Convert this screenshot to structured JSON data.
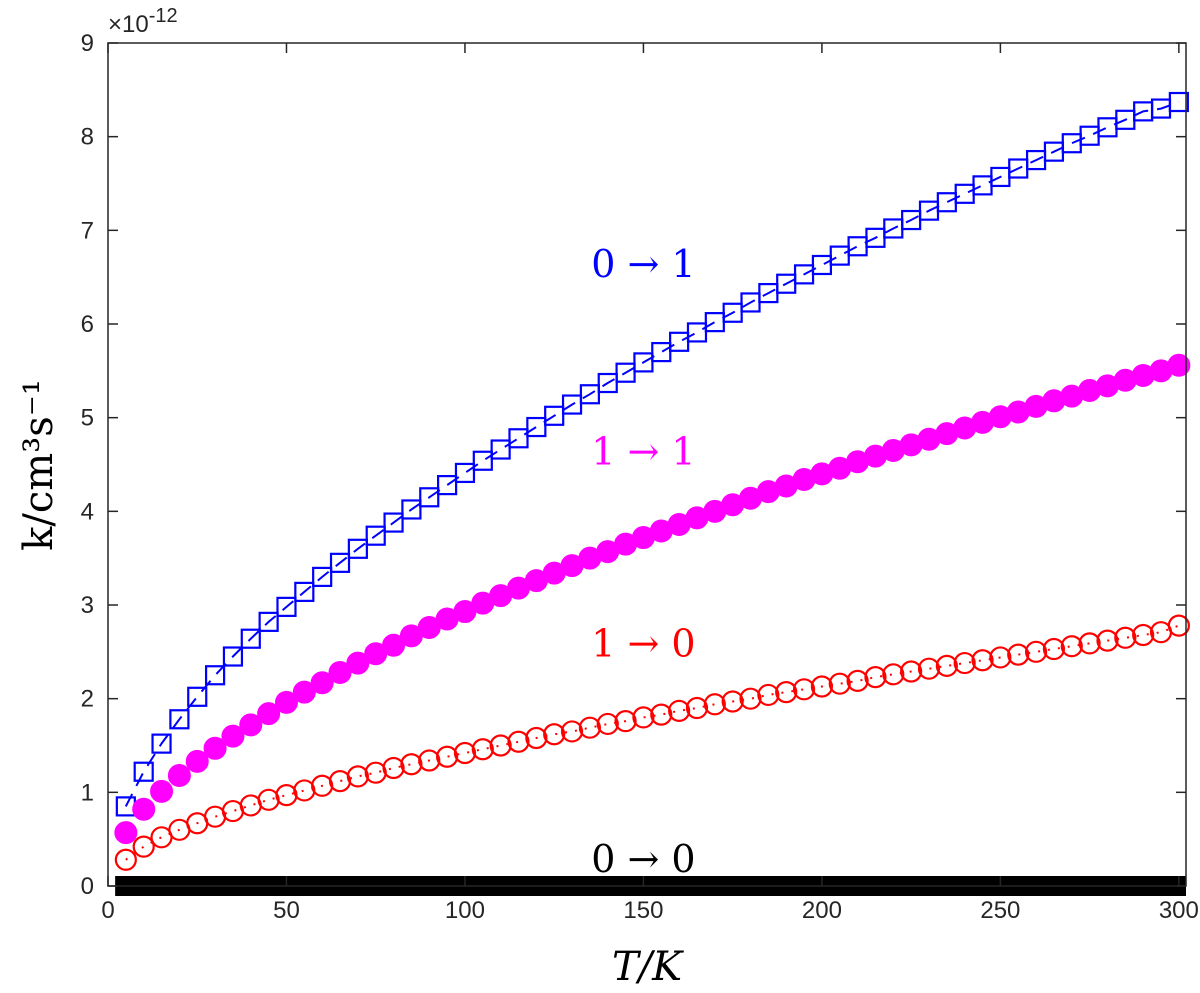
{
  "chart_data": {
    "type": "scatter",
    "xlabel": "T/K",
    "ylabel": "k/cm³s⁻¹",
    "y_exponent_label": "×10",
    "y_exponent_power": "-12",
    "xlim": [
      0,
      302
    ],
    "ylim": [
      0,
      9
    ],
    "x_ticks": [
      0,
      50,
      100,
      150,
      200,
      250,
      300
    ],
    "y_ticks": [
      0,
      1,
      2,
      3,
      4,
      5,
      6,
      7,
      8,
      9
    ],
    "grid": false,
    "series": [
      {
        "name": "0 → 1",
        "color": "#0000ff",
        "marker": "square",
        "line": "dashed",
        "label_at": [
          150,
          6.5
        ],
        "x": [
          5,
          10,
          15,
          20,
          25,
          30,
          35,
          40,
          45,
          50,
          55,
          60,
          65,
          70,
          75,
          80,
          85,
          90,
          95,
          100,
          105,
          110,
          115,
          120,
          125,
          130,
          135,
          140,
          145,
          150,
          155,
          160,
          165,
          170,
          175,
          180,
          185,
          190,
          195,
          200,
          205,
          210,
          215,
          220,
          225,
          230,
          235,
          240,
          245,
          250,
          255,
          260,
          265,
          270,
          275,
          280,
          285,
          290,
          295,
          300
        ],
        "y": [
          0.85,
          1.22,
          1.52,
          1.78,
          2.02,
          2.25,
          2.45,
          2.64,
          2.82,
          2.98,
          3.14,
          3.3,
          3.45,
          3.6,
          3.74,
          3.88,
          4.02,
          4.15,
          4.28,
          4.41,
          4.54,
          4.66,
          4.78,
          4.9,
          5.02,
          5.14,
          5.25,
          5.37,
          5.48,
          5.59,
          5.7,
          5.81,
          5.91,
          6.02,
          6.12,
          6.23,
          6.33,
          6.43,
          6.53,
          6.63,
          6.73,
          6.83,
          6.92,
          7.02,
          7.11,
          7.21,
          7.3,
          7.39,
          7.48,
          7.57,
          7.66,
          7.75,
          7.84,
          7.93,
          8.01,
          8.1,
          8.18,
          8.27,
          8.3,
          8.37
        ]
      },
      {
        "name": "1 → 1",
        "color": "#ff00ff",
        "marker": "filled-circle",
        "line": "none",
        "label_at": [
          150,
          4.5
        ],
        "x": [
          5,
          10,
          15,
          20,
          25,
          30,
          35,
          40,
          45,
          50,
          55,
          60,
          65,
          70,
          75,
          80,
          85,
          90,
          95,
          100,
          105,
          110,
          115,
          120,
          125,
          130,
          135,
          140,
          145,
          150,
          155,
          160,
          165,
          170,
          175,
          180,
          185,
          190,
          195,
          200,
          205,
          210,
          215,
          220,
          225,
          230,
          235,
          240,
          245,
          250,
          255,
          260,
          265,
          270,
          275,
          280,
          285,
          290,
          295,
          300
        ],
        "y": [
          0.57,
          0.82,
          1.01,
          1.18,
          1.33,
          1.47,
          1.6,
          1.72,
          1.84,
          1.96,
          2.07,
          2.17,
          2.28,
          2.38,
          2.48,
          2.57,
          2.67,
          2.76,
          2.85,
          2.93,
          3.02,
          3.1,
          3.18,
          3.26,
          3.34,
          3.42,
          3.5,
          3.57,
          3.65,
          3.72,
          3.79,
          3.86,
          3.93,
          4.0,
          4.07,
          4.14,
          4.21,
          4.27,
          4.34,
          4.4,
          4.46,
          4.53,
          4.59,
          4.65,
          4.71,
          4.77,
          4.83,
          4.89,
          4.95,
          5.01,
          5.06,
          5.12,
          5.18,
          5.23,
          5.29,
          5.34,
          5.4,
          5.45,
          5.5,
          5.56
        ]
      },
      {
        "name": "1 → 0",
        "color": "#ff0000",
        "marker": "open-circle",
        "line": "dotted",
        "label_at": [
          150,
          2.45
        ],
        "x": [
          5,
          10,
          15,
          20,
          25,
          30,
          35,
          40,
          45,
          50,
          55,
          60,
          65,
          70,
          75,
          80,
          85,
          90,
          95,
          100,
          105,
          110,
          115,
          120,
          125,
          130,
          135,
          140,
          145,
          150,
          155,
          160,
          165,
          170,
          175,
          180,
          185,
          190,
          195,
          200,
          205,
          210,
          215,
          220,
          225,
          230,
          235,
          240,
          245,
          250,
          255,
          260,
          265,
          270,
          275,
          280,
          285,
          290,
          295,
          300
        ],
        "y": [
          0.28,
          0.42,
          0.52,
          0.6,
          0.67,
          0.74,
          0.8,
          0.86,
          0.92,
          0.97,
          1.02,
          1.07,
          1.12,
          1.17,
          1.21,
          1.26,
          1.3,
          1.34,
          1.38,
          1.42,
          1.46,
          1.5,
          1.54,
          1.58,
          1.62,
          1.65,
          1.69,
          1.73,
          1.76,
          1.8,
          1.83,
          1.87,
          1.9,
          1.94,
          1.97,
          2.0,
          2.04,
          2.07,
          2.1,
          2.13,
          2.16,
          2.19,
          2.23,
          2.26,
          2.29,
          2.32,
          2.35,
          2.38,
          2.41,
          2.44,
          2.47,
          2.5,
          2.53,
          2.56,
          2.59,
          2.62,
          2.65,
          2.68,
          2.71,
          2.78
        ]
      },
      {
        "name": "0 → 0",
        "color": "#000000",
        "marker": "thick-line",
        "line": "solid",
        "label_at": [
          150,
          0.15
        ],
        "x": [
          2,
          302
        ],
        "y": [
          0.0,
          0.0
        ]
      }
    ]
  }
}
